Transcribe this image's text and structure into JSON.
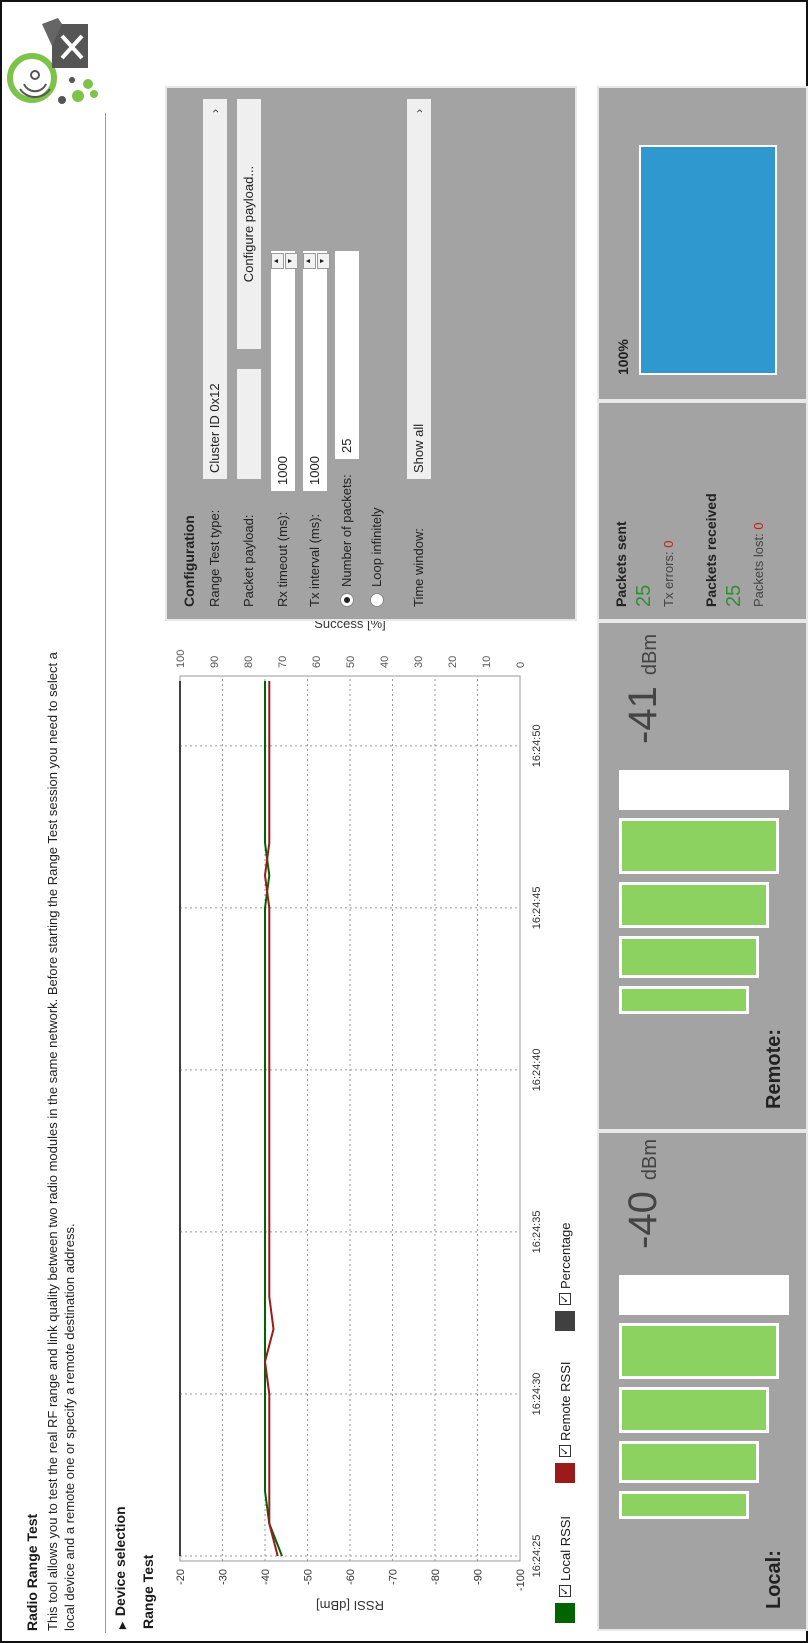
{
  "header": {
    "title": "Radio Range Test",
    "description": "This tool allows you to test the real RF range and link quality between two radio modules in the same network. Before starting the Range Test session you need to select a local device and a remote one or specify a remote destination address."
  },
  "sections": {
    "device_selection": "Device selection",
    "range_test": "Range Test"
  },
  "chart_data": {
    "type": "line",
    "x": [
      "16:24:25",
      "16:24:26",
      "16:24:27",
      "16:24:28",
      "16:24:29",
      "16:24:30",
      "16:24:31",
      "16:24:32",
      "16:24:33",
      "16:24:34",
      "16:24:35",
      "16:24:36",
      "16:24:37",
      "16:24:38",
      "16:24:39",
      "16:24:40",
      "16:24:41",
      "16:24:42",
      "16:24:43",
      "16:24:44",
      "16:24:45",
      "16:24:46",
      "16:24:47",
      "16:24:48",
      "16:24:49",
      "16:24:50",
      "16:24:51",
      "16:24:52"
    ],
    "x_ticks": [
      "16:24:25",
      "16:24:30",
      "16:24:35",
      "16:24:40",
      "16:24:45",
      "16:24:50"
    ],
    "series": [
      {
        "name": "Local RSSI",
        "axis": "left",
        "color": "#006400",
        "values": [
          -44,
          -41,
          -40,
          -40,
          -40,
          -40,
          -40,
          -40,
          -40,
          -40,
          -40,
          -40,
          -40,
          -40,
          -40,
          -40,
          -40,
          -40,
          -40,
          -40,
          -40,
          -41,
          -40,
          -40,
          -40,
          -40,
          -40,
          -40
        ]
      },
      {
        "name": "Remote RSSI",
        "axis": "left",
        "color": "#9b1b1b",
        "values": [
          -43,
          -41,
          -41,
          -41,
          -41,
          -41,
          -40,
          -42,
          -41,
          -41,
          -41,
          -41,
          -41,
          -41,
          -41,
          -41,
          -41,
          -41,
          -41,
          -41,
          -41,
          -40,
          -41,
          -41,
          -41,
          -41,
          -41,
          -41
        ]
      },
      {
        "name": "Percentage",
        "axis": "right",
        "color": "#404040",
        "values": [
          100,
          100,
          100,
          100,
          100,
          100,
          100,
          100,
          100,
          100,
          100,
          100,
          100,
          100,
          100,
          100,
          100,
          100,
          100,
          100,
          100,
          100,
          100,
          100,
          100,
          100,
          100,
          100
        ]
      }
    ],
    "ylabel": "RSSI [dBm]",
    "ylim": [
      -100,
      -20
    ],
    "y_ticks": [
      -20,
      -30,
      -40,
      -50,
      -60,
      -70,
      -80,
      -90,
      -100
    ],
    "y2label": "Success [%]",
    "y2lim": [
      0,
      100
    ],
    "y2_ticks": [
      100,
      90,
      80,
      70,
      60,
      50,
      40,
      30,
      20,
      10,
      0
    ],
    "grid": true,
    "legend": "bottom-left"
  },
  "legend": {
    "local": "Local RSSI",
    "remote": "Remote RSSI",
    "percentage": "Percentage",
    "check": "✓",
    "colors": {
      "local": "#006400",
      "remote": "#9b1b1b",
      "percentage": "#404040"
    }
  },
  "config": {
    "title": "Configuration",
    "range_test_type_label": "Range Test type:",
    "range_test_type_value": "Cluster ID 0x12",
    "packet_payload_label": "Packet payload:",
    "configure_payload_button": "Configure payload...",
    "rx_timeout_label": "Rx timeout (ms):",
    "rx_timeout_value": "1000",
    "tx_interval_label": "Tx interval (ms):",
    "tx_interval_value": "1000",
    "number_of_packets_label": "Number of packets:",
    "number_of_packets_value": "25",
    "loop_infinitely_label": "Loop infinitely",
    "time_window_label": "Time window:",
    "time_window_value": "Show all",
    "chevron": "›",
    "spin_up": "▲",
    "spin_down": "▼"
  },
  "local": {
    "label": "Local:",
    "value": "-40",
    "unit": "dBm",
    "signal_bars": 4,
    "signal_bars_total": 5
  },
  "remote": {
    "label": "Remote:",
    "value": "-41",
    "unit": "dBm",
    "signal_bars": 4,
    "signal_bars_total": 5
  },
  "stats": {
    "packets_sent_label": "Packets sent",
    "packets_sent_value": "25",
    "tx_errors_label": "Tx errors:",
    "tx_errors_value": "0",
    "packets_received_label": "Packets received",
    "packets_received_value": "25",
    "packets_lost_label": "Packets lost:",
    "packets_lost_value": "0"
  },
  "success": {
    "percent_label": "100%",
    "percent_value": 100,
    "color": "#2f98cf"
  },
  "logo": {
    "icon": "radio-range-test-logo-icon"
  }
}
